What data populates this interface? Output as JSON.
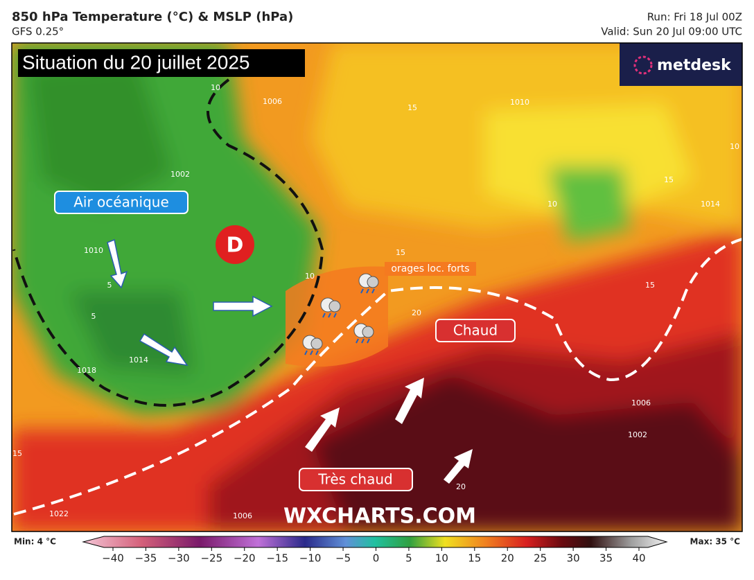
{
  "header": {
    "title": "850 hPa Temperature (°C) & MSLP (hPa)",
    "model": "GFS 0.25°",
    "run": "Run: Fri 18 Jul 00Z",
    "valid": "Valid: Sun 20 Jul 09:00 UTC"
  },
  "map": {
    "situation": "Situation du 20 juillet 2025",
    "logo": "metdesk",
    "oceanic_label": "Air océanique",
    "low_symbol": "D",
    "storms_label": "orages loc. forts",
    "warm_label": "Chaud",
    "very_warm_label": "Très chaud",
    "watermark": "WXCHARTS.COM",
    "contour_labels": [
      "10",
      "1006",
      "15",
      "1010",
      "10",
      "1002",
      "1010",
      "5",
      "5",
      "1014",
      "1018",
      "10",
      "15",
      "15",
      "20",
      "1006",
      "1022",
      "20",
      "1002",
      "1006",
      "15",
      "15",
      "10",
      "1014"
    ]
  },
  "colorbar": {
    "min_label": "Min: 4 °C",
    "max_label": "Max: 35 °C",
    "ticks": [
      {
        "value": -40,
        "label": "−40"
      },
      {
        "value": -35,
        "label": "−35"
      },
      {
        "value": -30,
        "label": "−30"
      },
      {
        "value": -25,
        "label": "−25"
      },
      {
        "value": -20,
        "label": "−20"
      },
      {
        "value": -15,
        "label": "−15"
      },
      {
        "value": -10,
        "label": "−10"
      },
      {
        "value": -5,
        "label": "−5"
      },
      0,
      5,
      10,
      15,
      20,
      25,
      30,
      35,
      40
    ]
  }
}
